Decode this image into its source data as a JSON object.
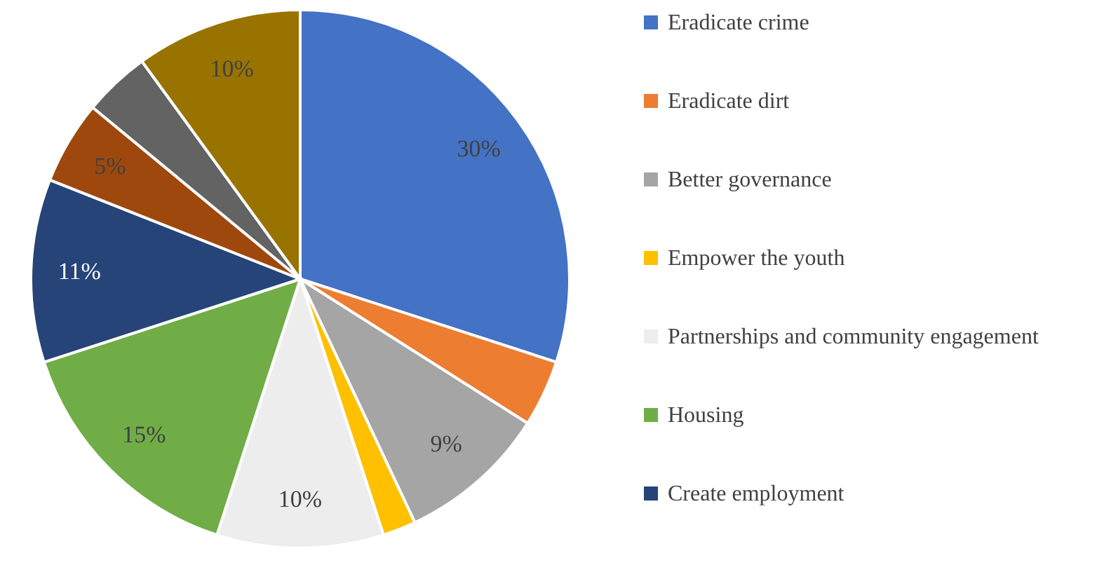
{
  "chart_data": {
    "type": "pie",
    "categories": [
      "Eradicate crime",
      "Eradicate dirt",
      "Better governance",
      "Empower the youth",
      "Partnerships and community engagement",
      "Housing",
      "Create employment",
      null,
      null,
      null
    ],
    "values": [
      30,
      4,
      9,
      2,
      10,
      15,
      11,
      5,
      4,
      10
    ],
    "colors": [
      "#4472c4",
      "#ed7d31",
      "#a5a5a5",
      "#ffc000",
      "#ededed",
      "#70ad47",
      "#264478",
      "#9e480e",
      "#636363",
      "#997300"
    ],
    "value_labels": [
      "30%",
      null,
      "9%",
      null,
      "10%",
      "15%",
      "11%",
      "5%",
      null,
      "10%"
    ],
    "legend": "right"
  }
}
